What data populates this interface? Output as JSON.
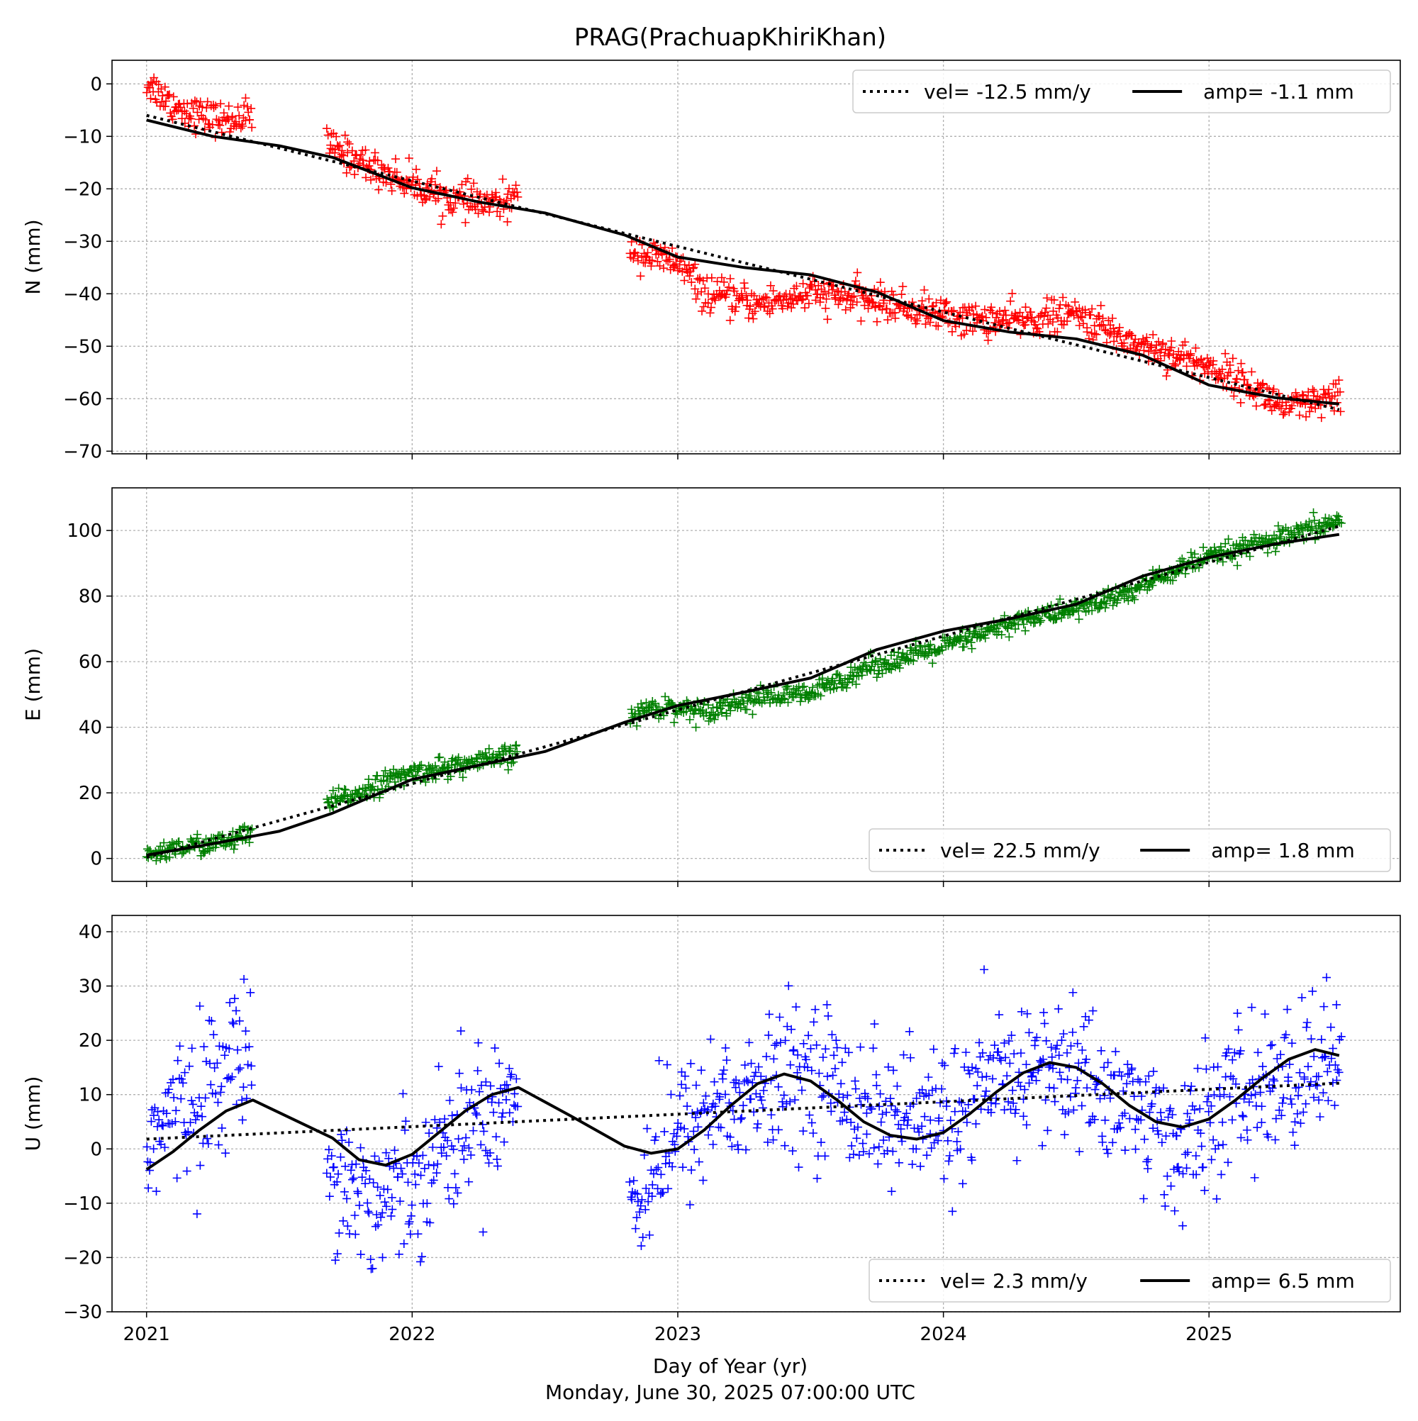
{
  "page": {
    "title": "PRAG(PrachuapKhiriKhan)",
    "xlabel": "Day of Year (yr)",
    "timestamp": "Monday, June 30, 2025 07:00:00 UTC"
  },
  "chart_data": [
    {
      "type": "scatter",
      "panel": "N",
      "ylabel": "N (mm)",
      "xlim": [
        2020.87,
        2025.72
      ],
      "ylim": [
        -70.5,
        4.5
      ],
      "yticks": [
        0,
        -10,
        -20,
        -30,
        -40,
        -50,
        -60,
        -70
      ],
      "xticks": [
        2021,
        2022,
        2023,
        2024,
        2025
      ],
      "grid": true,
      "marker_color": "#ff0000",
      "legend": {
        "placement": "upper-right",
        "vel_label": "vel= -12.5 mm/y",
        "amp_label": "amp= -1.1 mm"
      },
      "observations": {
        "x": [
          2021.01,
          2021.1,
          2021.2,
          2021.3,
          2021.38,
          2021.7,
          2021.85,
          2022.0,
          2022.15,
          2022.3,
          2022.4,
          2022.82,
          2022.9,
          2023.0,
          2023.1,
          2023.3,
          2023.5,
          2023.7,
          2023.9,
          2024.1,
          2024.3,
          2024.5,
          2024.7,
          2024.9,
          2025.1,
          2025.3,
          2025.49
        ],
        "y": [
          0,
          -4,
          -6,
          -7,
          -6,
          -12,
          -16,
          -19,
          -22,
          -23,
          -22,
          -31,
          -33,
          -34,
          -40,
          -42,
          -40,
          -41,
          -43,
          -45,
          -45,
          -44,
          -49,
          -52,
          -56,
          -62,
          -60
        ]
      },
      "linear_fit": {
        "x": [
          2021.0,
          2025.49
        ],
        "y": [
          -6.0,
          -62.1
        ]
      },
      "seasonal_fit": {
        "x": [
          2021.0,
          2021.25,
          2021.5,
          2021.7,
          2022.0,
          2022.25,
          2022.5,
          2022.8,
          2023.0,
          2023.25,
          2023.5,
          2023.75,
          2024.0,
          2024.25,
          2024.5,
          2024.75,
          2025.0,
          2025.25,
          2025.49
        ],
        "y": [
          -6.9,
          -10.0,
          -11.8,
          -14.0,
          -19.8,
          -22.5,
          -24.6,
          -28.8,
          -33.0,
          -35.0,
          -36.4,
          -39.7,
          -45.1,
          -47.3,
          -48.6,
          -51.7,
          -57.4,
          -59.8,
          -61.0
        ]
      }
    },
    {
      "type": "scatter",
      "panel": "E",
      "ylabel": "E (mm)",
      "xlim": [
        2020.87,
        2025.72
      ],
      "ylim": [
        -7,
        113
      ],
      "yticks": [
        0,
        20,
        40,
        60,
        80,
        100
      ],
      "xticks": [
        2021,
        2022,
        2023,
        2024,
        2025
      ],
      "grid": true,
      "marker_color": "#008000",
      "legend": {
        "placement": "lower-right",
        "vel_label": "vel= 22.5 mm/y",
        "amp_label": "amp= 1.8 mm"
      },
      "observations": {
        "x": [
          2021.01,
          2021.1,
          2021.2,
          2021.3,
          2021.38,
          2021.7,
          2021.85,
          2022.0,
          2022.15,
          2022.3,
          2022.4,
          2022.82,
          2022.9,
          2023.0,
          2023.1,
          2023.3,
          2023.5,
          2023.7,
          2023.9,
          2024.1,
          2024.3,
          2024.5,
          2024.7,
          2024.9,
          2025.1,
          2025.3,
          2025.49
        ],
        "y": [
          1,
          3,
          4,
          5,
          7,
          17,
          22,
          26,
          28,
          30,
          32,
          43,
          46,
          46,
          45,
          49,
          50,
          58,
          62,
          67,
          73,
          76,
          81,
          89,
          94,
          98,
          103
        ]
      },
      "linear_fit": {
        "x": [
          2021.0,
          2025.49
        ],
        "y": [
          0.3,
          101.3
        ]
      },
      "seasonal_fit": {
        "x": [
          2021.0,
          2021.25,
          2021.5,
          2021.7,
          2022.0,
          2022.25,
          2022.5,
          2022.8,
          2023.0,
          2023.25,
          2023.5,
          2023.75,
          2024.0,
          2024.25,
          2024.5,
          2024.75,
          2025.0,
          2025.25,
          2025.49
        ],
        "y": [
          1.0,
          4.5,
          8.3,
          13.8,
          24.1,
          28.4,
          32.6,
          41.5,
          46.6,
          50.7,
          55.0,
          63.7,
          69.3,
          73.1,
          77.5,
          86.1,
          91.8,
          95.9,
          98.8
        ]
      }
    },
    {
      "type": "scatter",
      "panel": "U",
      "ylabel": "U (mm)",
      "xlim": [
        2020.87,
        2025.72
      ],
      "ylim": [
        -30,
        43
      ],
      "yticks": [
        40,
        30,
        20,
        10,
        0,
        -10,
        -20,
        -30
      ],
      "xticks": [
        2021,
        2022,
        2023,
        2024,
        2025
      ],
      "grid": true,
      "marker_color": "#0000ff",
      "legend": {
        "placement": "lower-right",
        "vel_label": "vel= 2.3 mm/y",
        "amp_label": "amp= 6.5 mm"
      },
      "observations": {
        "x": [
          2021.01,
          2021.1,
          2021.2,
          2021.3,
          2021.38,
          2021.7,
          2021.85,
          2022.0,
          2022.15,
          2022.3,
          2022.4,
          2022.82,
          2022.9,
          2023.0,
          2023.1,
          2023.3,
          2023.5,
          2023.7,
          2023.9,
          2024.1,
          2024.3,
          2024.5,
          2024.7,
          2024.9,
          2025.1,
          2025.3,
          2025.49
        ],
        "y": [
          2,
          6,
          10,
          15,
          18,
          -3,
          -10,
          -5,
          2,
          8,
          12,
          -12,
          -3,
          2,
          8,
          10,
          15,
          8,
          4,
          8,
          15,
          14,
          8,
          0,
          10,
          12,
          18
        ]
      },
      "linear_fit": {
        "x": [
          2021.0,
          2025.49
        ],
        "y": [
          1.8,
          12.1
        ]
      },
      "seasonal_fit": {
        "x": [
          2021.0,
          2021.1,
          2021.2,
          2021.3,
          2021.4,
          2021.7,
          2021.8,
          2021.9,
          2022.0,
          2022.1,
          2022.2,
          2022.3,
          2022.4,
          2022.6,
          2022.8,
          2022.9,
          2023.0,
          2023.1,
          2023.2,
          2023.3,
          2023.4,
          2023.5,
          2023.6,
          2023.7,
          2023.8,
          2023.9,
          2024.0,
          2024.1,
          2024.2,
          2024.3,
          2024.4,
          2024.5,
          2024.6,
          2024.7,
          2024.8,
          2024.9,
          2025.0,
          2025.1,
          2025.2,
          2025.3,
          2025.4,
          2025.49
        ],
        "y": [
          -3.8,
          -0.5,
          3.5,
          7.0,
          9.0,
          2.0,
          -2.0,
          -3.0,
          -1.0,
          3.0,
          7.0,
          10.0,
          11.3,
          6.0,
          0.5,
          -0.8,
          0.0,
          3.5,
          8.0,
          12.0,
          13.8,
          12.5,
          9.0,
          5.0,
          2.5,
          1.8,
          3.0,
          6.5,
          10.5,
          14.0,
          15.9,
          15.0,
          12.0,
          8.0,
          5.0,
          4.0,
          5.5,
          9.0,
          13.0,
          16.5,
          18.3,
          17.2
        ]
      }
    }
  ]
}
